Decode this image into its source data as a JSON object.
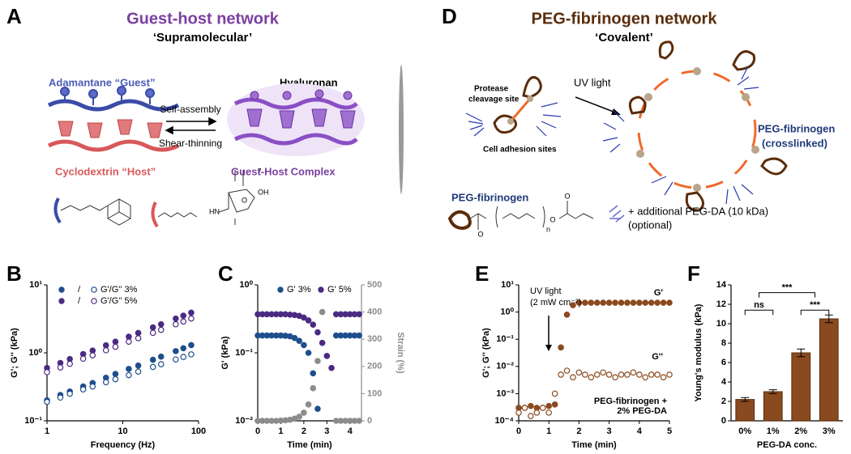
{
  "panel_a": {
    "letter": "A",
    "title": "Guest-host network",
    "subtitle": "‘Supramolecular’",
    "guest": "Adamantane “Guest”",
    "polymer": "Hyaluronan",
    "forward": "Self-assembly",
    "reverse": "Shear-thinning",
    "host": "Cyclodextrin “Host”",
    "complex": "Guest-Host Complex",
    "structure": {
      "amine": "HN",
      "hydroxyl": "OH",
      "ring_oxygen": "O",
      "repeat": "7"
    }
  },
  "panel_d": {
    "letter": "D",
    "title": "PEG-fibrinogen network",
    "subtitle": "‘Covalent’",
    "protease": [
      "Protease",
      "cleavage site"
    ],
    "trigger": "UV light",
    "adhesion": "Cell adhesion sites",
    "monomer": "PEG-fibrinogen",
    "crosslinked": [
      "PEG-fibrinogen",
      "(crosslinked)"
    ],
    "additive": [
      "+ additional PEG-DA (10 kDa)",
      "(optional)"
    ],
    "structure": {
      "oxygens": [
        "O",
        "O",
        "O"
      ],
      "repeat": "n"
    }
  },
  "chart_data": [
    {
      "type": "scatter",
      "letter": "B",
      "xlabel": "Frequency (Hz)",
      "ylabel": "G'; G'' (kPa)",
      "xlog": true,
      "ylog": true,
      "xlim": [
        1,
        100
      ],
      "xticks": [
        1,
        10,
        100
      ],
      "ylim": [
        0.1,
        10
      ],
      "yticks": [
        {
          "value": 0.1,
          "label": "10⁻¹"
        },
        {
          "value": 1,
          "label": "10⁰"
        },
        {
          "value": 10,
          "label": "10¹"
        }
      ],
      "x": [
        1,
        1.5,
        2,
        3,
        4,
        6,
        8,
        12,
        16,
        25,
        32,
        50,
        63,
        80
      ],
      "series": [
        {
          "color": "#1f4e8c",
          "marker": "filled",
          "values": [
            0.2,
            0.24,
            0.27,
            0.32,
            0.36,
            0.43,
            0.49,
            0.58,
            0.65,
            0.79,
            0.88,
            1.06,
            1.17,
            1.3
          ]
        },
        {
          "color": "#1f4e8c",
          "marker": "open",
          "values": [
            0.19,
            0.22,
            0.25,
            0.29,
            0.32,
            0.37,
            0.41,
            0.47,
            0.53,
            0.62,
            0.68,
            0.8,
            0.87,
            0.95
          ]
        },
        {
          "color": "#4b2a82",
          "marker": "filled",
          "values": [
            0.6,
            0.71,
            0.81,
            0.96,
            1.08,
            1.29,
            1.46,
            1.73,
            1.96,
            2.37,
            2.63,
            3.19,
            3.52,
            3.9
          ]
        },
        {
          "color": "#4b2a82",
          "marker": "open",
          "values": [
            0.52,
            0.61,
            0.69,
            0.82,
            0.92,
            1.09,
            1.23,
            1.46,
            1.64,
            1.97,
            2.18,
            2.63,
            2.89,
            3.2
          ]
        }
      ],
      "legend": {
        "separator": "/",
        "labels": [
          "G'/G'' 3%",
          "G'/G'' 5%"
        ]
      }
    },
    {
      "type": "scatter",
      "letter": "C",
      "xlabel": "Time (min)",
      "ylabel": "G' (kPa)",
      "y2label": "Strain (%)",
      "ylog": true,
      "xlim": [
        0,
        4.5
      ],
      "xticks": [
        0,
        1,
        2,
        3,
        4
      ],
      "ylim": [
        0.01,
        1
      ],
      "yticks": [
        {
          "value": 0.01,
          "label": "10⁻²"
        },
        {
          "value": 0.1,
          "label": "10⁻¹"
        },
        {
          "value": 1,
          "label": "10⁰"
        }
      ],
      "y2lim": [
        0,
        500
      ],
      "y2ticks": [
        0,
        100,
        200,
        300,
        400,
        500
      ],
      "y2color": "#8c8c8c",
      "x": [
        0,
        0.2,
        0.4,
        0.6,
        0.8,
        1.0,
        1.2,
        1.4,
        1.6,
        1.8,
        2.0,
        2.2,
        2.4,
        2.6,
        2.8,
        3.0,
        3.2,
        3.4,
        3.6,
        3.8,
        4.0,
        4.2,
        4.4
      ],
      "series": [
        {
          "name": "G' 3%",
          "color": "#1f4e8c",
          "marker": "filled",
          "values": [
            0.18,
            0.18,
            0.18,
            0.18,
            0.18,
            0.18,
            0.178,
            0.175,
            0.165,
            0.15,
            0.13,
            0.1,
            0.05,
            0.015,
            null,
            null,
            null,
            0.18,
            0.18,
            0.18,
            0.18,
            0.18,
            0.18
          ]
        },
        {
          "name": "G' 5%",
          "color": "#4b2a82",
          "marker": "filled",
          "values": [
            0.37,
            0.37,
            0.37,
            0.37,
            0.37,
            0.37,
            0.37,
            0.365,
            0.36,
            0.35,
            0.33,
            0.3,
            0.26,
            0.2,
            0.14,
            0.09,
            0.06,
            0.37,
            0.37,
            0.37,
            0.37,
            0.37,
            0.37
          ]
        },
        {
          "color": "#8c8c8c",
          "marker": "filled",
          "axis": "y2",
          "values": [
            0,
            0,
            0,
            0,
            0,
            1,
            2,
            4,
            8,
            15,
            30,
            60,
            120,
            220,
            400,
            null,
            null,
            0,
            0,
            0,
            0,
            0,
            0
          ]
        }
      ]
    },
    {
      "type": "scatter",
      "letter": "E",
      "xlabel": "Time (min)",
      "ylabel": "G'; G'' (kPa)",
      "ylog": true,
      "xlim": [
        0,
        5
      ],
      "xticks": [
        0,
        1,
        2,
        3,
        4,
        5
      ],
      "ylim": [
        0.0001,
        10
      ],
      "yticks": [
        {
          "value": 0.0001,
          "label": "10⁻⁴"
        },
        {
          "value": 0.001,
          "label": "10⁻³"
        },
        {
          "value": 0.01,
          "label": "10⁻²"
        },
        {
          "value": 0.1,
          "label": "10⁻¹"
        },
        {
          "value": 1,
          "label": "10⁰"
        },
        {
          "value": 10,
          "label": "10¹"
        }
      ],
      "x": [
        0,
        0.2,
        0.4,
        0.6,
        0.8,
        1.0,
        1.2,
        1.4,
        1.6,
        1.8,
        2.0,
        2.2,
        2.4,
        2.6,
        2.8,
        3.0,
        3.2,
        3.4,
        3.6,
        3.8,
        4.0,
        4.2,
        4.4,
        4.6,
        4.8,
        5.0
      ],
      "series": [
        {
          "name": "G'",
          "color": "#8a4a1f",
          "marker": "filled",
          "values": [
            0.0003,
            0.0003,
            0.00035,
            0.0003,
            0.0003,
            0.00035,
            0.0004,
            0.05,
            0.8,
            1.8,
            2.2,
            2.2,
            2.2,
            2.2,
            2.2,
            2.2,
            2.2,
            2.2,
            2.2,
            2.2,
            2.2,
            2.2,
            2.2,
            2.2,
            2.2,
            2.2
          ]
        },
        {
          "name": "G''",
          "color": "#8a4a1f",
          "marker": "open",
          "values": [
            0.0002,
            0.0003,
            0.00015,
            0.0002,
            0.0003,
            0.0002,
            0.001,
            0.005,
            0.007,
            0.004,
            0.006,
            0.005,
            0.004,
            0.005,
            0.006,
            0.005,
            0.004,
            0.005,
            0.005,
            0.006,
            0.005,
            0.004,
            0.005,
            0.005,
            0.004,
            0.005
          ]
        }
      ],
      "trigger": [
        "UV light",
        "(2 mW cm⁻²)"
      ],
      "note": [
        "PEG-fibrinogen +",
        "2% PEG-DA"
      ]
    },
    {
      "type": "bar",
      "letter": "F",
      "xlabel": "PEG-DA conc.",
      "ylabel": "Young's modulus (kPa)",
      "categories": [
        "0%",
        "1%",
        "2%",
        "3%"
      ],
      "values": [
        2.2,
        3.0,
        7.0,
        10.5
      ],
      "errors": [
        0.2,
        0.2,
        0.4,
        0.4
      ],
      "color": "#8a4a1f",
      "ylim": [
        0,
        14
      ],
      "yticks": [
        0,
        2,
        4,
        6,
        8,
        10,
        12,
        14
      ],
      "significance": [
        "***",
        "ns",
        "***"
      ]
    }
  ]
}
